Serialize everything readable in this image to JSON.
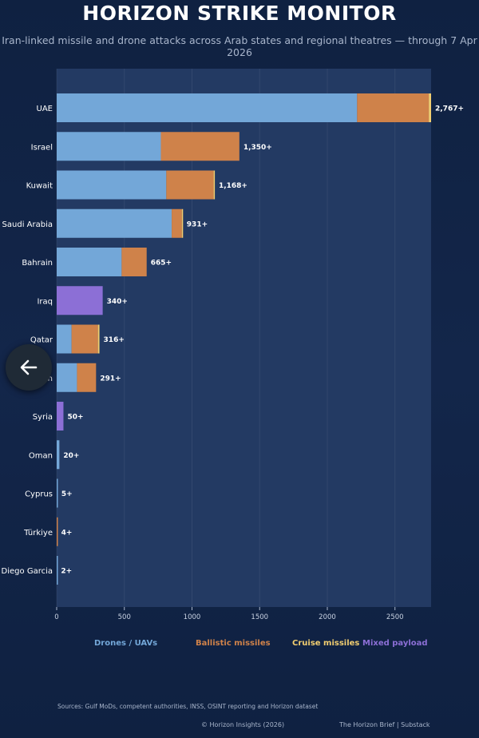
{
  "header": {
    "title": "HORIZON STRIKE MONITOR",
    "subtitle": "Iran-linked missile and drone attacks across Arab states and regional theatres — through 7 Apr 2026"
  },
  "colors": {
    "drones": "#73a7d8",
    "ballistic": "#cf824a",
    "cruise": "#f1cd70",
    "mixed": "#8c6fd6",
    "plot_bg": "#233a63"
  },
  "chart_data": {
    "type": "bar",
    "orientation": "horizontal",
    "stacked": true,
    "categories": [
      "UAE",
      "Israel",
      "Kuwait",
      "Saudi Arabia",
      "Bahrain",
      "Iraq",
      "Qatar",
      "Jordan",
      "Syria",
      "Oman",
      "Cyprus",
      "Türkiye",
      "Diego Garcia"
    ],
    "series": [
      {
        "name": "Drones / UAVs",
        "values": [
          2220,
          770,
          810,
          850,
          480,
          0,
          110,
          150,
          0,
          20,
          5,
          0,
          2
        ]
      },
      {
        "name": "Ballistic missiles",
        "values": [
          530,
          580,
          350,
          75,
          185,
          0,
          195,
          141,
          0,
          0,
          0,
          4,
          0
        ]
      },
      {
        "name": "Cruise missiles",
        "values": [
          17,
          0,
          8,
          6,
          0,
          0,
          11,
          0,
          0,
          0,
          0,
          0,
          0
        ]
      },
      {
        "name": "Mixed payload",
        "values": [
          0,
          0,
          0,
          0,
          0,
          340,
          0,
          0,
          50,
          0,
          0,
          0,
          0
        ]
      }
    ],
    "data_labels": [
      "2,767+",
      "1,350+",
      "1,168+",
      "931+",
      "665+",
      "340+",
      "316+",
      "291+",
      "50+",
      "20+",
      "5+",
      "4+",
      "2+"
    ],
    "xlim": [
      0,
      2767
    ],
    "xticks": [
      0,
      500,
      1000,
      1500,
      2000,
      2500
    ],
    "grid": true,
    "legend": "bottom"
  },
  "legend": {
    "drones": "Drones / UAVs",
    "ballistic": "Ballistic missiles",
    "cruise": "Cruise missiles",
    "mixed": "Mixed payload"
  },
  "footer": {
    "sources": "Sources: Gulf MoDs, competent authorities, INSS, OSINT reporting and Horizon dataset",
    "copyright": "© Horizon Insights (2026)",
    "brand": "The Horizon Brief | Substack"
  }
}
